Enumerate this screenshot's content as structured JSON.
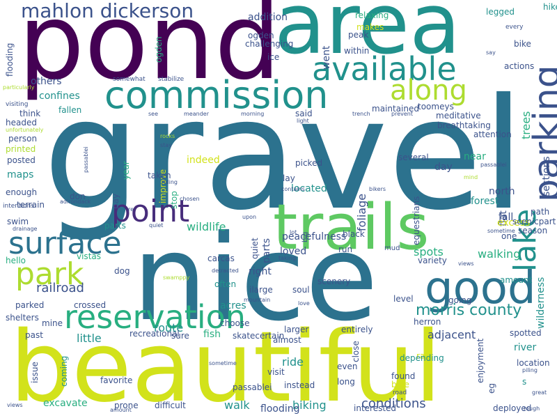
{
  "palette": {
    "c1": "#440154",
    "c2": "#472d7b",
    "c3": "#3b528b",
    "c4": "#2c728e",
    "c5": "#21918c",
    "c6": "#28ae80",
    "c7": "#5ec962",
    "c8": "#addc30",
    "c9": "#d2e21b"
  },
  "words": [
    "gravel",
    "nice",
    "beautiful",
    "pond",
    "area",
    "trails",
    "commission",
    "available",
    "parking",
    "lake",
    "good",
    "along",
    "park",
    "reservation",
    "surface",
    "point",
    "mahlon dickerson",
    "morris county",
    "conditions",
    "railroad",
    "walking",
    "wildlife",
    "adjacent",
    "route",
    "little",
    "ride",
    "biking",
    "walk",
    "acres",
    "fish",
    "crossed",
    "river",
    "forest",
    "spots",
    "peacefulness",
    "loved",
    "located",
    "foliage",
    "maps",
    "indeed",
    "day",
    "near",
    "north",
    "fall",
    "excess",
    "one",
    "season",
    "coyote",
    "path",
    "scenicpart",
    "equestrians",
    "extremely",
    "fortunate",
    "saffin",
    "wilderness",
    "sections",
    "flat",
    "trees",
    "toomeys",
    "actions",
    "bike",
    "hike",
    "legged",
    "every",
    "relaxing",
    "makes",
    "peak",
    "went",
    "within",
    "ice",
    "challenging",
    "ogden",
    "addition",
    "others",
    "confines",
    "fallen",
    "think",
    "headed",
    "person",
    "printed",
    "posted",
    "enough",
    "terrain",
    "swim",
    "hello",
    "vistas",
    "dog",
    "parked",
    "shelters",
    "mine",
    "past",
    "storm",
    "shredding",
    "regardless",
    "time",
    "coming",
    "issue",
    "favorite",
    "prone",
    "difficult",
    "excavate",
    "flooding",
    "interested",
    "deployed",
    "assumption",
    "particularly",
    "visiting",
    "unfortunately",
    "intentions",
    "drainage",
    "adirondack",
    "somewhat",
    "stabilize",
    "see",
    "meander",
    "morning",
    "light",
    "said",
    "trench",
    "prevent",
    "maintained",
    "meditative",
    "breathtaking",
    "attention",
    "several",
    "rocks",
    "stay",
    "riding",
    "pay",
    "year",
    "taken",
    "don",
    "improve",
    "stop",
    "chosen",
    "lay",
    "picked",
    "contains",
    "bikers",
    "mind",
    "re",
    "upon",
    "quiet",
    "parts",
    "big",
    "lot",
    "black",
    "run",
    "mud",
    "variety",
    "carcas",
    "right",
    "taking",
    "swamppy",
    "detracted",
    "often",
    "ilarge",
    "mountain",
    "soul",
    "love",
    "scenery",
    "level",
    "going",
    "choose",
    "skatecertain",
    "recreational",
    "sure",
    "larger",
    "entirely",
    "herron",
    "almost",
    "close",
    "even",
    "visit",
    "instead",
    "long",
    "found",
    "depending",
    "blue",
    "road",
    "walkers",
    "effort",
    "worth",
    "bicycle",
    "rail",
    "enjoyment",
    "eg",
    "s",
    "location",
    "spotted",
    "piling",
    "great",
    "rough",
    "views",
    "amount",
    "sometime",
    "passablei",
    "say"
  ]
}
